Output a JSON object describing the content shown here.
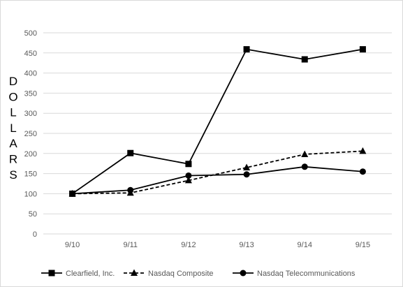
{
  "chart_data": {
    "type": "line",
    "title": "",
    "xlabel": "",
    "ylabel": "DOLLARS",
    "categories": [
      "9/10",
      "9/11",
      "9/12",
      "9/13",
      "9/14",
      "9/15"
    ],
    "ylim": [
      0,
      500
    ],
    "yticks": [
      0,
      50,
      100,
      150,
      200,
      250,
      300,
      350,
      400,
      450,
      500
    ],
    "grid": "horizontal",
    "legend_position": "bottom",
    "series": [
      {
        "name": "Clearfield, Inc.",
        "values": [
          100,
          201,
          174,
          459,
          434,
          459
        ],
        "marker": "square",
        "line": "solid",
        "color": "#000000"
      },
      {
        "name": "Nasdaq Composite",
        "values": [
          100,
          102,
          133,
          165,
          198,
          206
        ],
        "marker": "triangle",
        "line": "dashed",
        "color": "#000000"
      },
      {
        "name": "Nasdaq Telecommunications",
        "values": [
          100,
          109,
          145,
          148,
          167,
          155
        ],
        "marker": "circle",
        "line": "solid",
        "color": "#000000"
      }
    ]
  },
  "colors": {
    "grid": "#d9d9d9",
    "axis_text": "#595959",
    "line": "#000000"
  }
}
